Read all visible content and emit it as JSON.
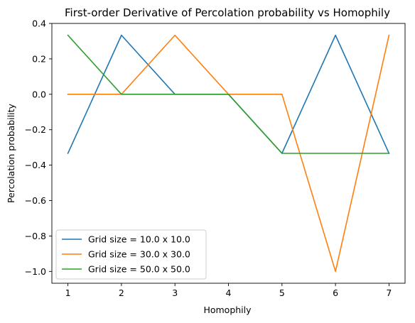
{
  "chart_data": {
    "type": "line",
    "title": "First-order Derivative of Percolation probability vs Homophily",
    "xlabel": "Homophily",
    "ylabel": "Percolation probability",
    "x": [
      1,
      2,
      3,
      4,
      5,
      6,
      7
    ],
    "xlim": [
      0.7,
      7.3
    ],
    "ylim": [
      -1.0667,
      0.4
    ],
    "xticks": [
      "1",
      "2",
      "3",
      "4",
      "5",
      "6",
      "7"
    ],
    "yticks": [
      0.4,
      0.2,
      0.0,
      -0.2,
      -0.4,
      -0.6,
      -0.8,
      -1.0
    ],
    "ytick_labels": [
      "0.4",
      "0.2",
      "0.0",
      "−0.2",
      "−0.4",
      "−0.6",
      "−0.8",
      "−1.0"
    ],
    "grid": false,
    "legend_position": "lower-left",
    "series": [
      {
        "name": "Grid size = 10.0 x 10.0",
        "color": "#1f77b4",
        "values": [
          -0.3333,
          0.3333,
          0.0,
          0.0,
          -0.3333,
          0.3333,
          -0.3333
        ]
      },
      {
        "name": "Grid size = 30.0 x 30.0",
        "color": "#ff7f0e",
        "values": [
          0.0,
          0.0,
          0.3333,
          0.0,
          0.0,
          -1.0,
          0.3333
        ]
      },
      {
        "name": "Grid size = 50.0 x 50.0",
        "color": "#2ca02c",
        "values": [
          0.3333,
          0.0,
          0.0,
          0.0,
          -0.3333,
          -0.3333,
          -0.3333
        ]
      }
    ]
  }
}
